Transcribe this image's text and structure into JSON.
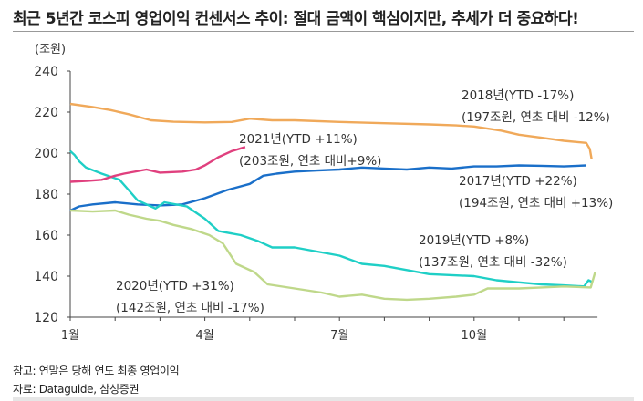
{
  "title": "최근 5년간 코스피 영업이익 컨센서스 추이: 절대 금액이 핵심이지만, 추세가 더 중요하다!",
  "footnote": "참고: 연말은 당해 연도 최종 영업이익",
  "source": "자료: Dataguide, 삼성증권",
  "chart_data": {
    "type": "line",
    "title": "",
    "xlabel": "",
    "ylabel": "(조원)",
    "xlim": [
      1,
      12.75
    ],
    "ylim": [
      120,
      240
    ],
    "yticks": [
      120,
      140,
      160,
      180,
      200,
      220,
      240
    ],
    "xticks": [
      1,
      2,
      3,
      4,
      5,
      6,
      7,
      8,
      9,
      10,
      11,
      12
    ],
    "xtick_labels": [
      {
        "x": 1,
        "label": "1월"
      },
      {
        "x": 4,
        "label": "4월"
      },
      {
        "x": 7,
        "label": "7월"
      },
      {
        "x": 10,
        "label": "10월"
      }
    ],
    "grid": false,
    "series": [
      {
        "id": "2018",
        "color": "#f0a95a",
        "x": [
          1,
          1.5,
          1.9,
          2.3,
          2.8,
          3.3,
          4,
          4.6,
          5,
          5.5,
          6,
          7,
          8,
          9,
          9.6,
          10,
          10.6,
          11,
          11.5,
          12,
          12.5,
          12.58,
          12.62
        ],
        "y": [
          224,
          222.5,
          221,
          219,
          216,
          215.3,
          215,
          215.2,
          216.8,
          216,
          216,
          215.2,
          214.6,
          214,
          213.5,
          213,
          211,
          209,
          207.5,
          206,
          205,
          202,
          197
        ]
      },
      {
        "id": "2017",
        "color": "#1a6fc9",
        "x": [
          1,
          1.2,
          1.5,
          2,
          2.5,
          3,
          3.5,
          4,
          4.5,
          5,
          5.3,
          5.6,
          6,
          6.5,
          7,
          7.5,
          8,
          8.5,
          9,
          9.5,
          10,
          10.5,
          11,
          11.5,
          12,
          12.5
        ],
        "y": [
          172,
          174,
          175,
          176,
          175,
          174.5,
          175,
          178,
          182,
          185,
          189,
          190,
          191,
          191.5,
          192,
          193,
          192.5,
          192,
          193,
          192.5,
          193.5,
          193.5,
          194,
          193.8,
          193.5,
          194
        ]
      },
      {
        "id": "2019",
        "color": "#1fcfc6",
        "x": [
          1,
          1.1,
          1.2,
          1.35,
          1.7,
          2.1,
          2.3,
          2.5,
          2.9,
          3.1,
          3.6,
          4,
          4.3,
          4.8,
          5.2,
          5.5,
          6,
          6.5,
          7,
          7.5,
          8,
          8.5,
          9,
          9.5,
          10,
          10.5,
          11,
          11.5,
          12,
          12.45,
          12.55,
          12.65
        ],
        "y": [
          201,
          199,
          196,
          193,
          190,
          187,
          182,
          177,
          173,
          176,
          174,
          168,
          162,
          160,
          157,
          154,
          154,
          152,
          150,
          146,
          145,
          143,
          141,
          140.5,
          140,
          138,
          137,
          136,
          135.5,
          135,
          138,
          137
        ]
      },
      {
        "id": "2020",
        "color": "#bfd88a",
        "x": [
          1,
          1.5,
          2,
          2.3,
          2.7,
          3,
          3.3,
          3.7,
          4.1,
          4.4,
          4.7,
          5.1,
          5.4,
          6,
          6.6,
          7,
          7.5,
          8,
          8.5,
          9,
          9.6,
          10,
          10.3,
          11,
          11.5,
          12,
          12.6,
          12.7
        ],
        "y": [
          172,
          171.5,
          172,
          170,
          168,
          167,
          165,
          163,
          160,
          156,
          146,
          142,
          136,
          134,
          132,
          130,
          131,
          129,
          128.5,
          129,
          130,
          131,
          134,
          134,
          134.5,
          135,
          134.5,
          142
        ]
      },
      {
        "id": "2021",
        "color": "#e0407e",
        "x": [
          1,
          1.4,
          1.7,
          2,
          2.2,
          2.7,
          3,
          3.5,
          3.8,
          4,
          4.3,
          4.6,
          4.9
        ],
        "y": [
          186,
          186.5,
          187,
          189,
          190,
          192,
          190.5,
          191,
          192,
          194,
          198,
          201,
          203
        ]
      }
    ],
    "annotations": [
      {
        "series": "2018",
        "line1": "2018년(YTD -17%)",
        "line2": "(197조원, 연초 대비 -12%)"
      },
      {
        "series": "2021",
        "line1": "2021년(YTD +11%)",
        "line2": "(203조원, 연초 대비+9%)"
      },
      {
        "series": "2017",
        "line1": "2017년(YTD +22%)",
        "line2": "(194조원, 연초 대비 +13%)"
      },
      {
        "series": "2019",
        "line1": "2019년(YTD +8%)",
        "line2": "(137조원, 연초 대비 -32%)"
      },
      {
        "series": "2020",
        "line1": "2020년(YTD +31%)",
        "line2": "(142조원, 연초 대비 -17%)"
      }
    ]
  }
}
